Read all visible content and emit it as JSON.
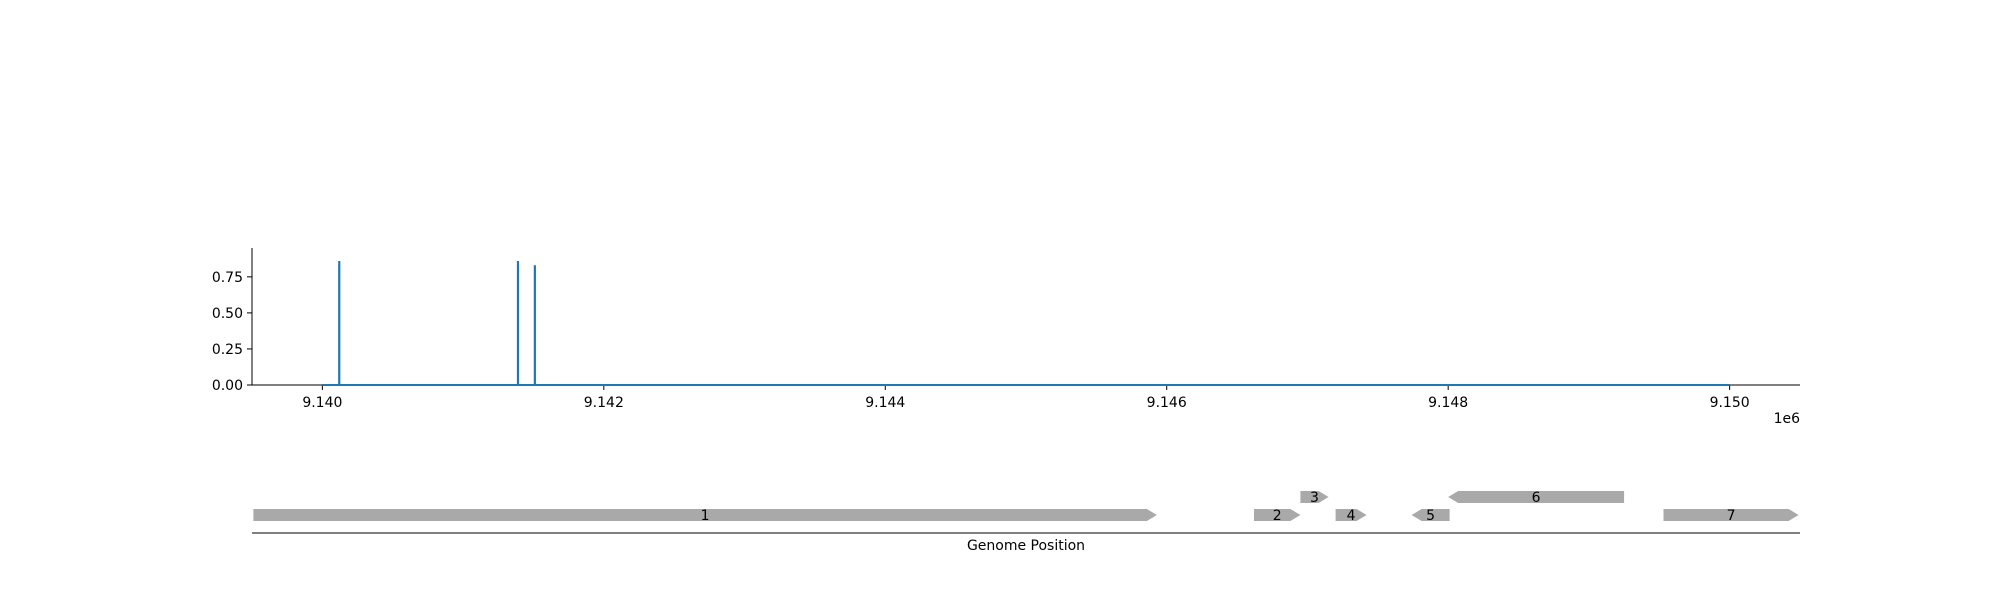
{
  "chart_data": [
    {
      "type": "line",
      "title": "",
      "xlabel": "",
      "ylabel": "",
      "xlim": [
        9139500,
        9150500
      ],
      "ylim": [
        0,
        0.95
      ],
      "x_offset_label": "1e6",
      "x_ticks": [
        9140000,
        9142000,
        9144000,
        9146000,
        9148000,
        9150000
      ],
      "x_tick_labels": [
        "9.140",
        "9.142",
        "9.144",
        "9.146",
        "9.148",
        "9.150"
      ],
      "y_ticks": [
        0.0,
        0.25,
        0.5,
        0.75
      ],
      "y_tick_labels": [
        "0.00",
        "0.25",
        "0.50",
        "0.75"
      ],
      "grid": false,
      "color": "#1f77b4",
      "baseline": {
        "x_start": 9140000,
        "x_end": 9150000,
        "y": 0
      },
      "spikes": [
        {
          "x": 9140120,
          "y": 0.86
        },
        {
          "x": 9141390,
          "y": 0.86
        },
        {
          "x": 9141510,
          "y": 0.83
        }
      ]
    },
    {
      "type": "gene-track",
      "xlabel": "Genome Position",
      "feature_color": "#a9a9a9",
      "features": [
        {
          "label": "1",
          "start": 9139510,
          "end": 9145930,
          "strand": 1,
          "row": 0
        },
        {
          "label": "2",
          "start": 9146620,
          "end": 9146950,
          "strand": 1,
          "row": 0
        },
        {
          "label": "3",
          "start": 9146950,
          "end": 9147150,
          "strand": 1,
          "row": 1
        },
        {
          "label": "4",
          "start": 9147200,
          "end": 9147420,
          "strand": 1,
          "row": 0
        },
        {
          "label": "5",
          "start": 9147740,
          "end": 9148010,
          "strand": -1,
          "row": 0
        },
        {
          "label": "6",
          "start": 9148000,
          "end": 9149250,
          "strand": -1,
          "row": 1
        },
        {
          "label": "7",
          "start": 9149530,
          "end": 9150490,
          "strand": 1,
          "row": 0
        }
      ]
    }
  ]
}
